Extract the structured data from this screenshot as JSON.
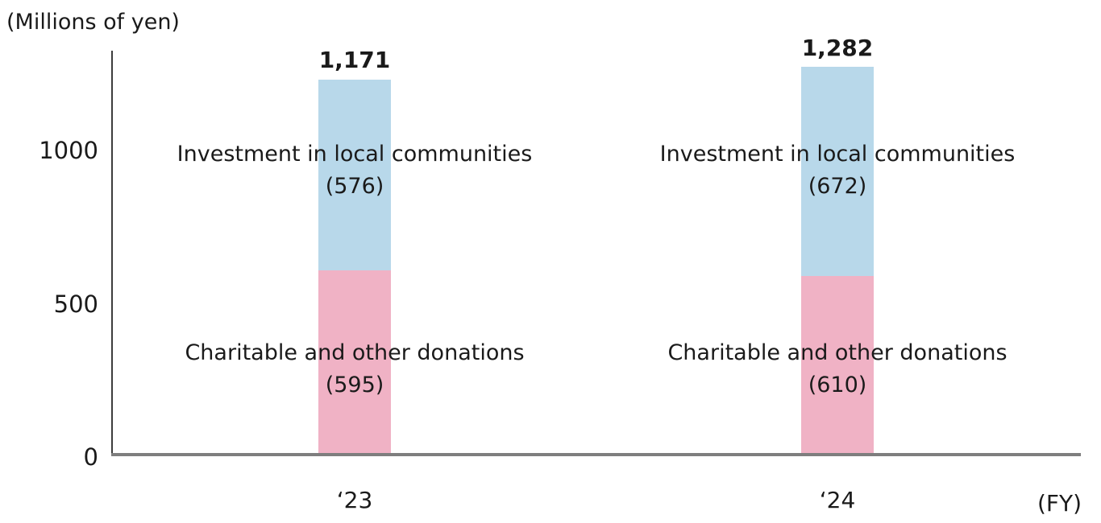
{
  "chart_data": {
    "type": "bar",
    "stacked": true,
    "title": "",
    "ylabel": "(Millions of yen)",
    "xlabel": "(FY)",
    "categories": [
      "‘23",
      "‘24"
    ],
    "series": [
      {
        "name": "Investment in local communities",
        "values": [
          576,
          672
        ],
        "color": "#b8d8ea"
      },
      {
        "name": "Charitable and other donations",
        "values": [
          595,
          610
        ],
        "color": "#f0b2c5"
      }
    ],
    "totals": [
      1171,
      1282
    ],
    "y_ticks": [
      0,
      500,
      1000
    ],
    "ylim": [
      0,
      1350
    ],
    "grid": false,
    "legend": "inline labels drawn over bars",
    "axis_colors": {
      "y_axis": "#3d3d3d",
      "x_axis": "#7e7e7e"
    }
  },
  "ui": {
    "unit_label": "(Millions of yen)",
    "fy_label": "(FY)",
    "y_ticks": [
      "1000",
      "500",
      "0"
    ],
    "bars": [
      {
        "year": "‘23",
        "total": "1,171",
        "top_label": "Investment in local communities",
        "top_value": "(576)",
        "bottom_label": "Charitable and other donations",
        "bottom_value": "(595)"
      },
      {
        "year": "‘24",
        "total": "1,282",
        "top_label": "Investment in local communities",
        "top_value": "(672)",
        "bottom_label": "Charitable and other donations",
        "bottom_value": "(610)"
      }
    ]
  }
}
